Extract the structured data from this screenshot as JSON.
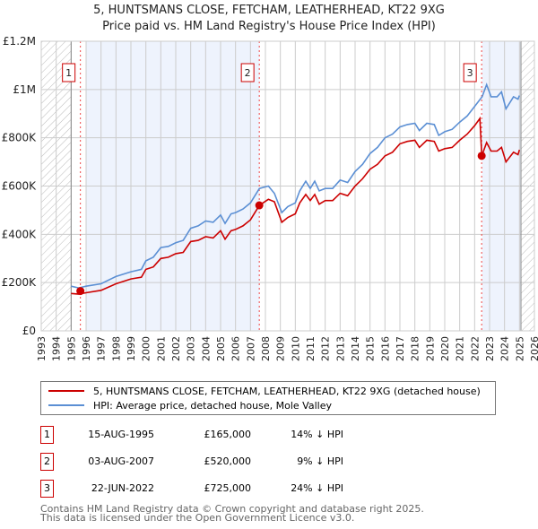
{
  "chart_data": {
    "type": "line",
    "title": "5, HUNTSMANS CLOSE, FETCHAM, LEATHERHEAD, KT22 9XG",
    "subtitle": "Price paid vs. HM Land Registry's House Price Index (HPI)",
    "xlim": [
      1993,
      2026
    ],
    "ylim": [
      0,
      1200000
    ],
    "grid": true,
    "y_ticks": [
      {
        "v": 0,
        "label": "£0"
      },
      {
        "v": 200000,
        "label": "£200K"
      },
      {
        "v": 400000,
        "label": "£400K"
      },
      {
        "v": 600000,
        "label": "£600K"
      },
      {
        "v": 800000,
        "label": "£800K"
      },
      {
        "v": 1000000,
        "label": "£1M"
      },
      {
        "v": 1200000,
        "label": "£1.2M"
      }
    ],
    "x_ticks": [
      "1993",
      "1994",
      "1995",
      "1996",
      "1997",
      "1998",
      "1999",
      "2000",
      "2001",
      "2002",
      "2003",
      "2004",
      "2005",
      "2006",
      "2007",
      "2008",
      "2009",
      "2010",
      "2011",
      "2012",
      "2013",
      "2014",
      "2015",
      "2016",
      "2017",
      "2018",
      "2019",
      "2020",
      "2021",
      "2022",
      "2023",
      "2024",
      "2025",
      "2026"
    ],
    "hatched_ranges": [
      [
        1993,
        1995.0
      ],
      [
        2025.1,
        2026
      ]
    ],
    "shaded_ranges": [
      [
        1996.0,
        2007.6
      ],
      [
        2022.5,
        2025.1
      ]
    ],
    "series": [
      {
        "name": "HPI: Average price, detached house, Mole Valley",
        "color": "#5b8fd4",
        "x": [
          1995.0,
          1995.5,
          1996,
          1997,
          1998,
          1999,
          1999.7,
          2000,
          2000.5,
          2001,
          2001.5,
          2002,
          2002.5,
          2003,
          2003.5,
          2004,
          2004.5,
          2005,
          2005.3,
          2005.7,
          2006,
          2006.5,
          2007,
          2007.6,
          2008.2,
          2008.6,
          2009.1,
          2009.5,
          2010,
          2010.3,
          2010.7,
          2011,
          2011.3,
          2011.6,
          2012,
          2012.5,
          2013,
          2013.5,
          2014,
          2014.5,
          2015,
          2015.5,
          2016,
          2016.5,
          2017,
          2017.5,
          2018,
          2018.3,
          2018.8,
          2019.3,
          2019.6,
          2020,
          2020.5,
          2021,
          2021.5,
          2022,
          2022.5,
          2022.8,
          2023.1,
          2023.5,
          2023.8,
          2024.1,
          2024.6,
          2024.9,
          2025.0
        ],
        "y": [
          185000,
          178000,
          185000,
          195000,
          225000,
          245000,
          255000,
          290000,
          305000,
          345000,
          350000,
          365000,
          375000,
          425000,
          435000,
          455000,
          450000,
          480000,
          445000,
          485000,
          490000,
          505000,
          530000,
          590000,
          600000,
          570000,
          490000,
          515000,
          530000,
          580000,
          620000,
          590000,
          620000,
          580000,
          590000,
          590000,
          625000,
          615000,
          660000,
          690000,
          735000,
          760000,
          800000,
          815000,
          845000,
          855000,
          860000,
          830000,
          860000,
          855000,
          810000,
          825000,
          835000,
          865000,
          890000,
          930000,
          970000,
          1020000,
          970000,
          970000,
          990000,
          920000,
          970000,
          960000,
          975000
        ]
      },
      {
        "name": "5, HUNTSMANS CLOSE, FETCHAM, LEATHERHEAD, KT22 9XG (detached house)",
        "color": "#cc0000",
        "x": [
          1995.0,
          1995.5,
          1996,
          1997,
          1998,
          1999,
          1999.7,
          2000,
          2000.5,
          2001,
          2001.5,
          2002,
          2002.5,
          2003,
          2003.5,
          2004,
          2004.5,
          2005,
          2005.3,
          2005.7,
          2006,
          2006.5,
          2007,
          2007.6,
          2008.2,
          2008.6,
          2009.1,
          2009.5,
          2010,
          2010.3,
          2010.7,
          2011,
          2011.3,
          2011.6,
          2012,
          2012.5,
          2013,
          2013.5,
          2014,
          2014.5,
          2015,
          2015.5,
          2016,
          2016.5,
          2017,
          2017.5,
          2018,
          2018.3,
          2018.8,
          2019.3,
          2019.6,
          2020,
          2020.5,
          2021,
          2021.5,
          2022,
          2022.35,
          2022.48,
          2022.8,
          2023.1,
          2023.5,
          2023.8,
          2024.1,
          2024.6,
          2024.9,
          2025.0
        ],
        "y": [
          155000,
          152000,
          158000,
          168000,
          195000,
          215000,
          222000,
          255000,
          265000,
          300000,
          305000,
          320000,
          325000,
          370000,
          375000,
          390000,
          385000,
          415000,
          380000,
          415000,
          420000,
          435000,
          460000,
          520000,
          545000,
          535000,
          450000,
          470000,
          485000,
          530000,
          565000,
          540000,
          565000,
          525000,
          540000,
          540000,
          570000,
          560000,
          600000,
          630000,
          670000,
          690000,
          725000,
          740000,
          775000,
          785000,
          790000,
          760000,
          790000,
          785000,
          745000,
          755000,
          760000,
          790000,
          815000,
          850000,
          880000,
          725000,
          780000,
          745000,
          745000,
          760000,
          700000,
          740000,
          730000,
          750000
        ]
      }
    ],
    "sales": [
      {
        "n": "1",
        "x": 1995.62,
        "y": 165000,
        "date": "15-AUG-1995",
        "price": "£165,000",
        "hpi": "14% ↓ HPI"
      },
      {
        "n": "2",
        "x": 2007.59,
        "y": 520000,
        "date": "03-AUG-2007",
        "price": "£520,000",
        "hpi": "9% ↓ HPI"
      },
      {
        "n": "3",
        "x": 2022.47,
        "y": 725000,
        "date": "22-JUN-2022",
        "price": "£725,000",
        "hpi": "24% ↓ HPI"
      }
    ],
    "legend": [
      "5, HUNTSMANS CLOSE, FETCHAM, LEATHERHEAD, KT22 9XG (detached house)",
      "HPI: Average price, detached house, Mole Valley"
    ]
  },
  "footer": [
    "Contains HM Land Registry data © Crown copyright and database right 2025.",
    "This data is licensed under the Open Government Licence v3.0."
  ]
}
